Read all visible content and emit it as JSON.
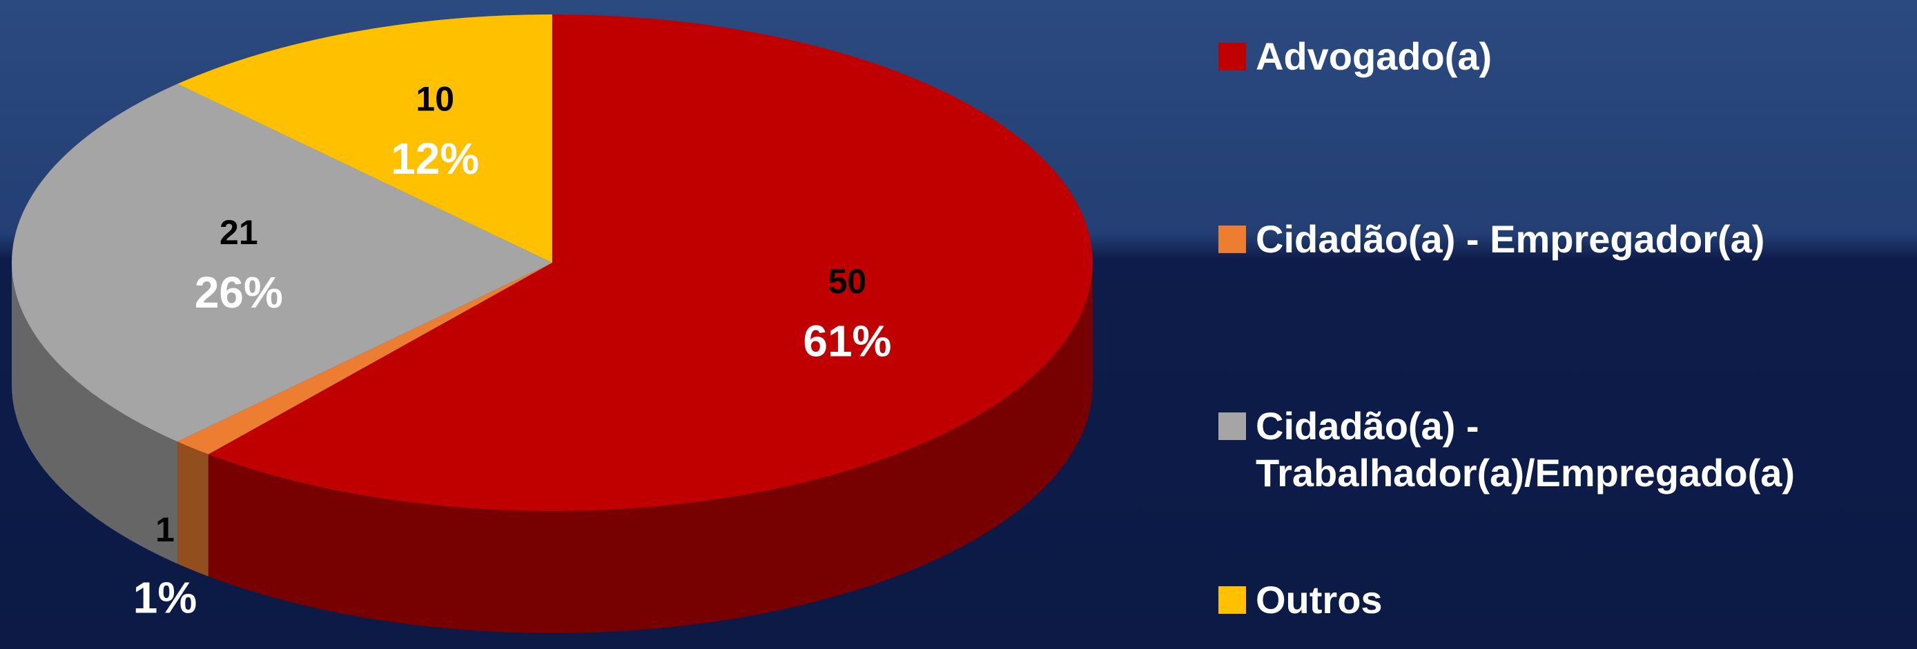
{
  "chart_data": {
    "type": "pie",
    "categories": [
      "Advogado(a)",
      "Cidadão(a) - Empregador(a)",
      "Cidadão(a) - Trabalhador(a)/Empregado(a)",
      "Outros"
    ],
    "values": [
      50,
      1,
      21,
      10
    ],
    "percentages": [
      61,
      1,
      26,
      12
    ],
    "percentage_labels": [
      "61%",
      "1%",
      "26%",
      "12%"
    ],
    "colors": [
      "#c00000",
      "#ed7d31",
      "#a5a5a5",
      "#ffc000"
    ],
    "legend": "right"
  }
}
